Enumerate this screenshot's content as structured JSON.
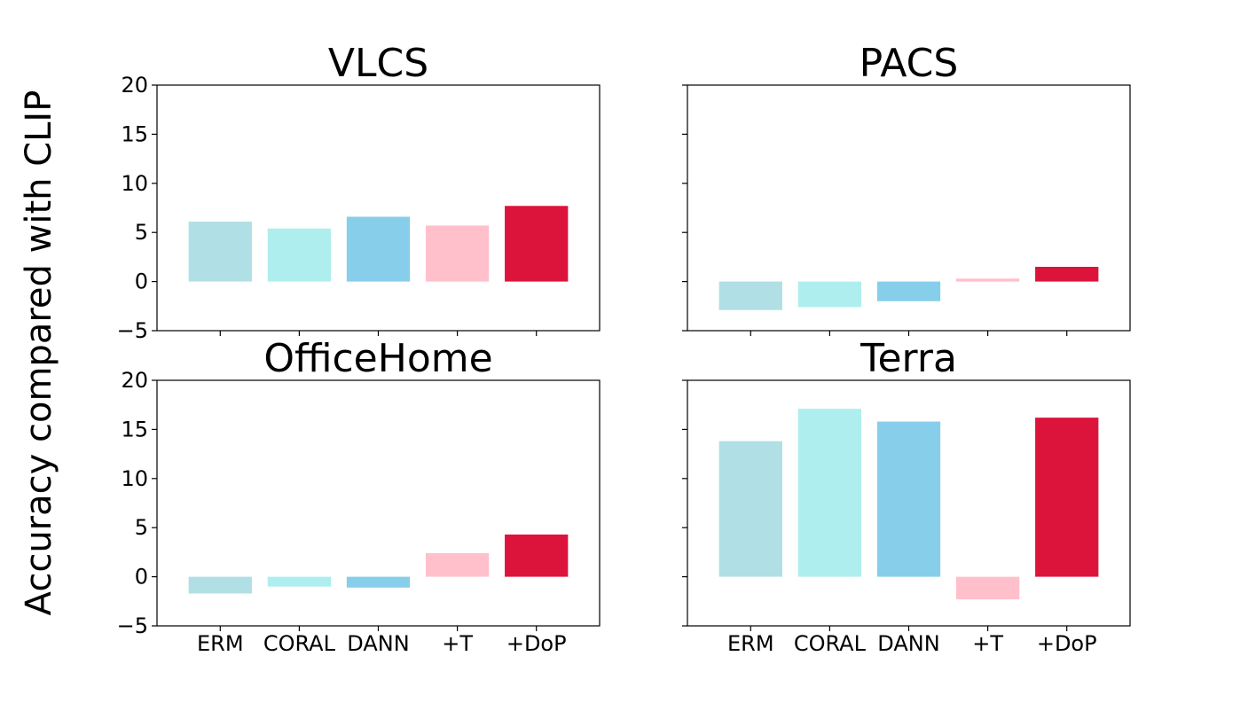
{
  "figure": {
    "ylabel": "Accuracy compared with CLIP"
  },
  "chart_data": [
    {
      "type": "bar",
      "title": "VLCS",
      "categories": [
        "ERM",
        "CORAL",
        "DANN",
        "+T",
        "+DoP"
      ],
      "values": [
        6.1,
        5.4,
        6.6,
        5.7,
        7.7
      ],
      "colors": [
        "#b0dfe5",
        "#afeeee",
        "#87ceeb",
        "#ffc0cb",
        "#dc143c"
      ],
      "ylim": [
        -5,
        20
      ],
      "yticks": [
        -5,
        0,
        5,
        10,
        15,
        20
      ],
      "ytick_labels": [
        "−5",
        "0",
        "5",
        "10",
        "15",
        "20"
      ],
      "show_xticklabels": false,
      "show_yticklabels": true
    },
    {
      "type": "bar",
      "title": "PACS",
      "categories": [
        "ERM",
        "CORAL",
        "DANN",
        "+T",
        "+DoP"
      ],
      "values": [
        -2.9,
        -2.6,
        -2.0,
        0.3,
        1.5
      ],
      "colors": [
        "#b0dfe5",
        "#afeeee",
        "#87ceeb",
        "#ffc0cb",
        "#dc143c"
      ],
      "ylim": [
        -5,
        20
      ],
      "yticks": [
        -5,
        0,
        5,
        10,
        15,
        20
      ],
      "ytick_labels": [],
      "show_xticklabels": false,
      "show_yticklabels": false
    },
    {
      "type": "bar",
      "title": "OfficeHome",
      "categories": [
        "ERM",
        "CORAL",
        "DANN",
        "+T",
        "+DoP"
      ],
      "values": [
        -1.7,
        -1.0,
        -1.1,
        2.4,
        4.3
      ],
      "colors": [
        "#b0dfe5",
        "#afeeee",
        "#87ceeb",
        "#ffc0cb",
        "#dc143c"
      ],
      "ylim": [
        -5,
        20
      ],
      "yticks": [
        -5,
        0,
        5,
        10,
        15,
        20
      ],
      "ytick_labels": [
        "−5",
        "0",
        "5",
        "10",
        "15",
        "20"
      ],
      "show_xticklabels": true,
      "show_yticklabels": true
    },
    {
      "type": "bar",
      "title": "Terra",
      "categories": [
        "ERM",
        "CORAL",
        "DANN",
        "+T",
        "+DoP"
      ],
      "values": [
        13.8,
        17.1,
        15.8,
        -2.3,
        16.2
      ],
      "colors": [
        "#b0dfe5",
        "#afeeee",
        "#87ceeb",
        "#ffc0cb",
        "#dc143c"
      ],
      "ylim": [
        -5,
        20
      ],
      "yticks": [
        -5,
        0,
        5,
        10,
        15,
        20
      ],
      "ytick_labels": [],
      "show_xticklabels": true,
      "show_yticklabels": false
    }
  ]
}
